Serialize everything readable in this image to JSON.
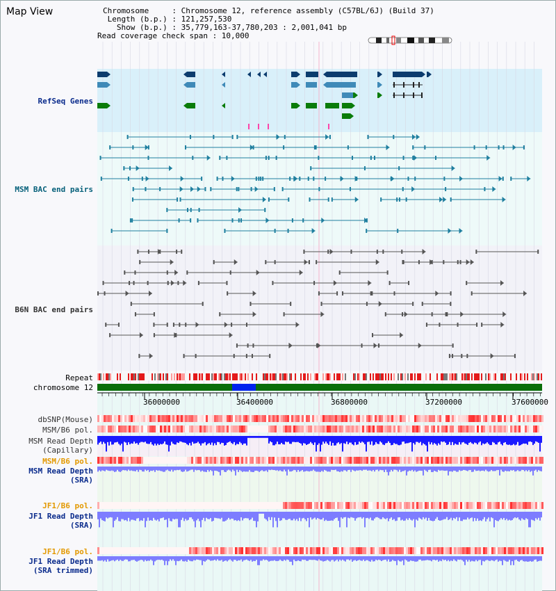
{
  "window": {
    "title": "Map View"
  },
  "header": {
    "line1": "Chromosome     : Chromosome 12, reference assembly (C57BL/6J) (Build 37)",
    "line2": " Length (b.p.) : 121,257,530",
    "line3": "   Show (b.p.) : 35,779,163-37,780,203 : 2,001,041 bp",
    "line4": "Read coverage check span : 10,000"
  },
  "tracks": {
    "refseq": "RefSeq Genes",
    "msm_bac": "MSM BAC end pairs",
    "b6n_bac": "B6N BAC end pairs",
    "repeat": "Repeat",
    "chromosome": "chromosome 12",
    "dbsnp": "dbSNP(Mouse)",
    "msm_b6_pol": "MSM/B6 pol.",
    "msm_depth_cap_1": "MSM Read Depth",
    "msm_depth_cap_2": "(Capillary)",
    "msm_b6_pol_sra": "MSM/B6 pol.",
    "msm_depth_sra_1": "MSM Read Depth",
    "msm_depth_sra_2": "(SRA)",
    "jf1_b6_pol": "JF1/B6 pol.",
    "jf1_depth_1": "JF1 Read Depth",
    "jf1_depth_2": "(SRA)",
    "jf1_b6_pol_2": "JF1/B6 pol.",
    "jf1_trim_1": "JF1 Read Depth",
    "jf1_trim_2": "(SRA trimmed)"
  },
  "axis": {
    "ticks": [
      "36000000",
      "36400000",
      "36800000",
      "37200000",
      "37600000"
    ]
  },
  "colors": {
    "refseq_bg": "#d9f0fa",
    "light_bg": "#eefaf9",
    "depth_blue": "#1a1aff",
    "depth_light": "#7d7dff",
    "snp_red": "#e33",
    "chrom_green": "#0a6e0a",
    "chrom_highlight": "#0022ee",
    "gene_navy": "#0c3c6e",
    "gene_mid": "#3f8ab8",
    "gene_green": "#0a7c0a"
  }
}
